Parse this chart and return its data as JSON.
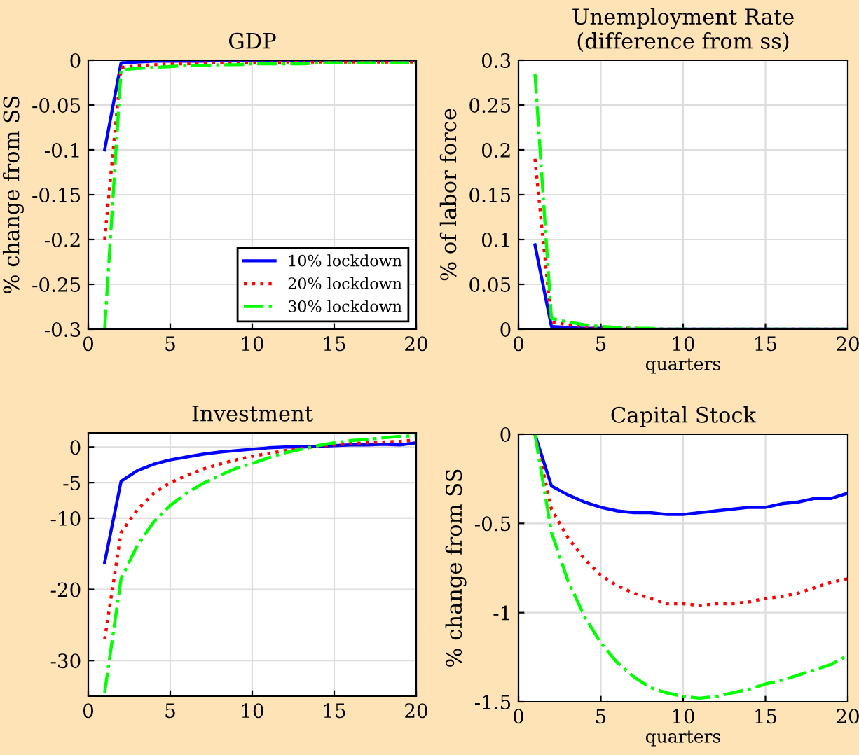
{
  "chart_data": [
    {
      "type": "line",
      "title": "GDP",
      "ylabel": "% change from SS",
      "x": [
        1,
        2,
        3,
        4,
        5,
        6,
        7,
        8,
        9,
        10,
        11,
        12,
        13,
        14,
        15,
        16,
        17,
        18,
        19,
        20
      ],
      "xlim": [
        0,
        20
      ],
      "xticks": [
        0,
        5,
        10,
        15,
        20
      ],
      "ylim": [
        -0.3,
        0
      ],
      "yticks": [
        -0.3,
        -0.25,
        -0.2,
        -0.15,
        -0.1,
        -0.05,
        0
      ],
      "grid": true,
      "legend": "bottom right",
      "series": [
        {
          "name": "10% lockdown",
          "color": "#0000ff",
          "line_style": "solid",
          "values": [
            -0.1,
            -0.003,
            -0.002,
            -0.001,
            -0.001,
            -0.001,
            -0.001,
            0,
            0,
            0,
            0,
            0,
            0,
            0,
            0,
            0,
            0,
            0,
            0,
            0
          ]
        },
        {
          "name": "20% lockdown",
          "color": "#ff0000",
          "line_style": "dotted",
          "values": [
            -0.2,
            -0.008,
            -0.006,
            -0.005,
            -0.004,
            -0.004,
            -0.003,
            -0.003,
            -0.003,
            -0.003,
            -0.003,
            -0.002,
            -0.002,
            -0.002,
            -0.002,
            -0.002,
            -0.002,
            -0.002,
            -0.002,
            -0.002
          ]
        },
        {
          "name": "30% lockdown",
          "color": "#00ff00",
          "line_style": "dashdot",
          "values": [
            -0.3,
            -0.011,
            -0.009,
            -0.008,
            -0.007,
            -0.006,
            -0.006,
            -0.005,
            -0.005,
            -0.004,
            -0.004,
            -0.004,
            -0.004,
            -0.003,
            -0.003,
            -0.003,
            -0.003,
            -0.003,
            -0.003,
            -0.003
          ]
        }
      ]
    },
    {
      "type": "line",
      "title": "Unemployment Rate\n(difference from ss)",
      "xlabel": "quarters",
      "ylabel": "% of labor force",
      "x": [
        1,
        2,
        3,
        4,
        5,
        6,
        7,
        8,
        9,
        10,
        11,
        12,
        13,
        14,
        15,
        16,
        17,
        18,
        19,
        20
      ],
      "xlim": [
        0,
        20
      ],
      "xticks": [
        0,
        5,
        10,
        15,
        20
      ],
      "ylim": [
        0,
        0.3
      ],
      "yticks": [
        0,
        0.05,
        0.1,
        0.15,
        0.2,
        0.25,
        0.3
      ],
      "grid": true,
      "series": [
        {
          "color": "#0000ff",
          "line_style": "solid",
          "values": [
            0.094,
            0.003,
            0.002,
            0.001,
            0.001,
            0,
            0,
            0,
            0,
            0,
            0,
            0,
            0,
            0,
            0,
            0,
            0,
            0,
            0,
            0
          ]
        },
        {
          "color": "#ff0000",
          "line_style": "dotted",
          "values": [
            0.19,
            0.008,
            0.005,
            0.003,
            0.002,
            0.001,
            0.001,
            0,
            0,
            0,
            0,
            0,
            0,
            0,
            0,
            0,
            0,
            0,
            0,
            0
          ]
        },
        {
          "color": "#00ff00",
          "line_style": "dashdot",
          "values": [
            0.285,
            0.012,
            0.008,
            0.005,
            0.003,
            0.002,
            0.001,
            0.001,
            0,
            0,
            0,
            0,
            0,
            0,
            0,
            0,
            0,
            0,
            0,
            0
          ]
        }
      ]
    },
    {
      "type": "line",
      "title": "Investment",
      "x": [
        1,
        2,
        3,
        4,
        5,
        6,
        7,
        8,
        9,
        10,
        11,
        12,
        13,
        14,
        15,
        16,
        17,
        18,
        19,
        20
      ],
      "xlim": [
        0,
        20
      ],
      "xticks": [
        0,
        5,
        10,
        15,
        20
      ],
      "ylim": [
        -35,
        2
      ],
      "yticks": [
        -30,
        -20,
        -10,
        -5,
        0
      ],
      "grid": true,
      "series": [
        {
          "color": "#0000ff",
          "line_style": "solid",
          "values": [
            -16.2,
            -4.8,
            -3.3,
            -2.4,
            -1.8,
            -1.4,
            -1.0,
            -0.7,
            -0.5,
            -0.3,
            -0.1,
            0,
            0,
            0.1,
            0.2,
            0.3,
            0.3,
            0.4,
            0.3,
            0.6
          ]
        },
        {
          "color": "#ff0000",
          "line_style": "dotted",
          "values": [
            -27,
            -12,
            -8.8,
            -6.5,
            -5.0,
            -4.0,
            -3.1,
            -2.4,
            -1.8,
            -1.3,
            -0.9,
            -0.5,
            -0.2,
            0.1,
            0.3,
            0.5,
            0.6,
            0.7,
            0.8,
            1.0
          ]
        },
        {
          "color": "#00ff00",
          "line_style": "dashdot",
          "values": [
            -34.5,
            -18.5,
            -13.8,
            -10.5,
            -8.2,
            -6.5,
            -5.1,
            -4.0,
            -3.0,
            -2.3,
            -1.5,
            -0.8,
            -0.3,
            0.2,
            0.6,
            0.9,
            1.1,
            1.3,
            1.5,
            1.6
          ]
        }
      ]
    },
    {
      "type": "line",
      "title": "Capital Stock",
      "xlabel": "quarters",
      "ylabel": "% change from SS",
      "x": [
        1,
        2,
        3,
        4,
        5,
        6,
        7,
        8,
        9,
        10,
        11,
        12,
        13,
        14,
        15,
        16,
        17,
        18,
        19,
        20
      ],
      "xlim": [
        0,
        20
      ],
      "xticks": [
        0,
        5,
        10,
        15,
        20
      ],
      "ylim": [
        -1.5,
        0
      ],
      "yticks": [
        -1.5,
        -1,
        -0.5,
        0
      ],
      "grid": true,
      "series": [
        {
          "color": "#0000ff",
          "line_style": "solid",
          "values": [
            0,
            -0.29,
            -0.34,
            -0.38,
            -0.41,
            -0.43,
            -0.44,
            -0.44,
            -0.45,
            -0.45,
            -0.44,
            -0.43,
            -0.42,
            -0.41,
            -0.41,
            -0.39,
            -0.38,
            -0.36,
            -0.36,
            -0.33
          ]
        },
        {
          "color": "#ff0000",
          "line_style": "dotted",
          "values": [
            0,
            -0.42,
            -0.58,
            -0.7,
            -0.79,
            -0.85,
            -0.89,
            -0.92,
            -0.95,
            -0.95,
            -0.96,
            -0.95,
            -0.95,
            -0.94,
            -0.92,
            -0.91,
            -0.89,
            -0.86,
            -0.83,
            -0.81
          ]
        },
        {
          "color": "#00ff00",
          "line_style": "dashdot",
          "values": [
            0,
            -0.55,
            -0.82,
            -1.02,
            -1.17,
            -1.28,
            -1.36,
            -1.42,
            -1.45,
            -1.47,
            -1.48,
            -1.47,
            -1.45,
            -1.43,
            -1.4,
            -1.38,
            -1.35,
            -1.32,
            -1.29,
            -1.24
          ]
        }
      ]
    }
  ]
}
